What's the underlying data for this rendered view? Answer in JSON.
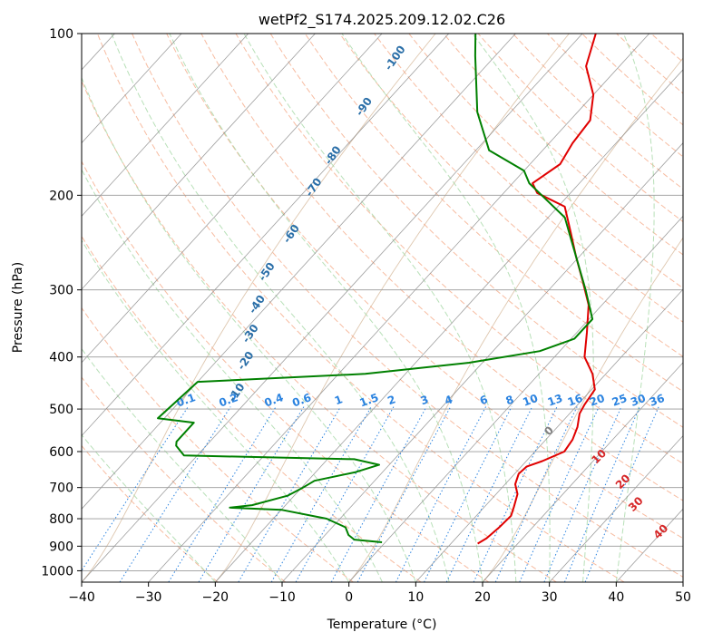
{
  "chart_data": {
    "type": "line",
    "chart_kind": "skew-T log-P diagram",
    "title": "wetPf2_S174.2025.209.12.02.C26",
    "xlabel": "Temperature (°C)",
    "ylabel": "Pressure (hPa)",
    "xlim": [
      -40,
      50
    ],
    "ylim": [
      1050,
      100
    ],
    "y_scale": "log",
    "grid": true,
    "x_ticks": [
      -40,
      -30,
      -20,
      -10,
      0,
      10,
      20,
      30,
      40,
      50
    ],
    "y_ticks": [
      100,
      200,
      300,
      400,
      500,
      600,
      700,
      800,
      900,
      1000
    ],
    "skew_isotherms_deg_c": [
      -120,
      -110,
      -100,
      -90,
      -80,
      -70,
      -60,
      -50,
      -40,
      -30,
      -20,
      -10,
      0,
      10,
      20,
      30,
      40,
      50
    ],
    "series": [
      {
        "role": "temperature",
        "color": "#e00000",
        "points": [
          {
            "p": 890,
            "t": 14.0
          },
          {
            "p": 870,
            "t": 14.6
          },
          {
            "p": 830,
            "t": 15.0
          },
          {
            "p": 790,
            "t": 15.2
          },
          {
            "p": 760,
            "t": 14.4
          },
          {
            "p": 720,
            "t": 13.2
          },
          {
            "p": 690,
            "t": 11.5
          },
          {
            "p": 660,
            "t": 10.6
          },
          {
            "p": 640,
            "t": 10.8
          },
          {
            "p": 625,
            "t": 12.4
          },
          {
            "p": 600,
            "t": 14.4
          },
          {
            "p": 570,
            "t": 14.0
          },
          {
            "p": 540,
            "t": 13.0
          },
          {
            "p": 510,
            "t": 11.5
          },
          {
            "p": 490,
            "t": 11.0
          },
          {
            "p": 460,
            "t": 10.5
          },
          {
            "p": 430,
            "t": 8.0
          },
          {
            "p": 400,
            "t": 4.5
          },
          {
            "p": 360,
            "t": 1.5
          },
          {
            "p": 320,
            "t": -2.0
          },
          {
            "p": 290,
            "t": -6.0
          },
          {
            "p": 260,
            "t": -10.5
          },
          {
            "p": 235,
            "t": -14.5
          },
          {
            "p": 210,
            "t": -19.0
          },
          {
            "p": 198,
            "t": -25.0
          },
          {
            "p": 190,
            "t": -27.0
          },
          {
            "p": 175,
            "t": -25.5
          },
          {
            "p": 160,
            "t": -26.5
          },
          {
            "p": 145,
            "t": -27.0
          },
          {
            "p": 130,
            "t": -30.0
          },
          {
            "p": 115,
            "t": -35.0
          },
          {
            "p": 100,
            "t": -38.0
          }
        ]
      },
      {
        "role": "dewpoint",
        "color": "#008000",
        "points": [
          {
            "p": 885,
            "t": -0.5
          },
          {
            "p": 875,
            "t": -5.0
          },
          {
            "p": 858,
            "t": -6.5
          },
          {
            "p": 830,
            "t": -8.0
          },
          {
            "p": 800,
            "t": -12.0
          },
          {
            "p": 770,
            "t": -20.0
          },
          {
            "p": 763,
            "t": -28.0
          },
          {
            "p": 755,
            "t": -25.0
          },
          {
            "p": 725,
            "t": -21.0
          },
          {
            "p": 700,
            "t": -19.8
          },
          {
            "p": 680,
            "t": -19.0
          },
          {
            "p": 655,
            "t": -14.0
          },
          {
            "p": 635,
            "t": -11.5
          },
          {
            "p": 620,
            "t": -16.0
          },
          {
            "p": 610,
            "t": -42.0
          },
          {
            "p": 585,
            "t": -44.5
          },
          {
            "p": 575,
            "t": -45.0
          },
          {
            "p": 530,
            "t": -45.0
          },
          {
            "p": 520,
            "t": -51.0
          },
          {
            "p": 445,
            "t": -50.0
          },
          {
            "p": 430,
            "t": -26.0
          },
          {
            "p": 410,
            "t": -12.0
          },
          {
            "p": 390,
            "t": -3.0
          },
          {
            "p": 370,
            "t": 0.5
          },
          {
            "p": 340,
            "t": 0.5
          },
          {
            "p": 300,
            "t": -4.5
          },
          {
            "p": 260,
            "t": -10.5
          },
          {
            "p": 220,
            "t": -17.5
          },
          {
            "p": 200,
            "t": -24.0
          },
          {
            "p": 190,
            "t": -27.5
          },
          {
            "p": 180,
            "t": -30.0
          },
          {
            "p": 165,
            "t": -38.0
          },
          {
            "p": 140,
            "t": -45.0
          },
          {
            "p": 110,
            "t": -53.0
          },
          {
            "p": 100,
            "t": -56.0
          }
        ]
      }
    ],
    "annotations": {
      "potential_temperature_labels": [
        "-100",
        "-90",
        "-80",
        "-70",
        "-60",
        "-50",
        "-40",
        "-30",
        "-20",
        "-10"
      ],
      "mixing_ratio_labels": [
        "0.1",
        "0.2",
        "0.4",
        "0.6",
        "1",
        "1.5",
        "2",
        "3",
        "4",
        "6",
        "8",
        "10",
        "13",
        "16",
        "20",
        "25",
        "30",
        "36"
      ],
      "moist_adiabat_labels": [
        "0",
        "10",
        "20",
        "30",
        "40"
      ]
    },
    "colors": {
      "dry_adiabat": "#f4a582",
      "moist_adiabat": "#a6d8a6",
      "mixing_ratio": "#2b83e0",
      "skew_isotherm": "#7f7f7f",
      "dry_label": "#2b6fa8",
      "moist_label": "#d62728",
      "zero_label": "#808080",
      "curved_isotherm": "#c8a27a"
    }
  }
}
